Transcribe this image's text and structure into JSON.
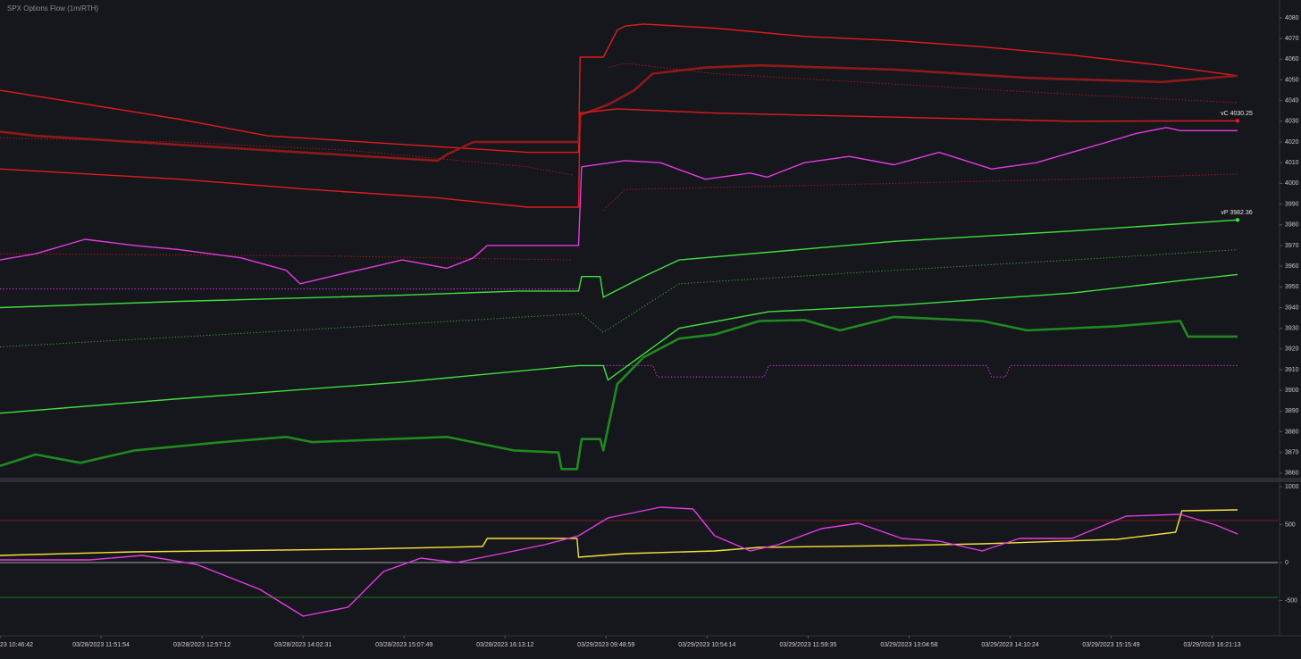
{
  "chart_data": [
    {
      "type": "line",
      "title": "SPX Options Flow (1m/RTH)",
      "xlim": [
        0,
        826
      ],
      "ylim": [
        3857.8,
        4088.6
      ],
      "yticks": [
        3860,
        3870,
        3880,
        3890,
        3900,
        3910,
        3920,
        3930,
        3940,
        3950,
        3960,
        3970,
        3980,
        3990,
        4000,
        4010,
        4020,
        4030,
        4040,
        4050,
        4060,
        4070,
        4080
      ],
      "series": [
        {
          "color": "#e01c1c",
          "linestyle": "solid",
          "x": [
            0,
            58,
            116,
            173,
            341,
            374,
            375,
            390,
            399,
            404,
            416,
            462,
            520,
            578,
            635,
            693,
            751,
            800
          ],
          "values": [
            4045,
            4038,
            4031,
            4023,
            4015,
            4015,
            4061,
            4061,
            4074,
            4076,
            4077,
            4075,
            4071,
            4069,
            4066,
            4062,
            4057,
            4052
          ]
        },
        {
          "color": "#8e1a1a",
          "linestyle": "thick",
          "x": [
            0,
            23,
            87,
            173,
            283,
            289,
            306,
            374,
            375,
            393,
            410,
            422,
            456,
            491,
            578,
            664,
            751,
            800
          ],
          "values": [
            4025,
            4023,
            4020,
            4016,
            4011,
            4014,
            4020,
            4020,
            4033,
            4038,
            4045,
            4053,
            4056,
            4057,
            4055,
            4051,
            4049,
            4052
          ]
        },
        {
          "color": "#e01c1c",
          "linestyle": "solid",
          "x": [
            0,
            116,
            202,
            283,
            341,
            374,
            375,
            399,
            462,
            578,
            693,
            800
          ],
          "values": [
            4007,
            4002,
            3997,
            3993,
            3988.5,
            3988.5,
            4034,
            4036,
            4034,
            4032,
            4030,
            4030.25
          ]
        },
        {
          "color": "#a51818",
          "linestyle": "dotted",
          "x": [
            0,
            116,
            225,
            341,
            370,
            374,
            393,
            404,
            462,
            578,
            693,
            800
          ],
          "values": [
            4022,
            4020,
            4016,
            4008,
            4004,
            null,
            4056,
            4058,
            4053,
            4048,
            4043,
            4039
          ]
        },
        {
          "color": "#a51818",
          "linestyle": "dotted",
          "x": [
            0,
            202,
            370,
            374,
            390,
            404,
            462,
            578,
            693,
            800
          ],
          "values": [
            3966,
            3965,
            3963,
            null,
            3987,
            3997,
            3998,
            4000,
            4002,
            4004.5
          ]
        },
        {
          "color": "#e33be0",
          "linestyle": "solid",
          "x": [
            0,
            23,
            55,
            87,
            116,
            156,
            185,
            194,
            225,
            243,
            260,
            289,
            306,
            315,
            374,
            376,
            404,
            427,
            456,
            485,
            496,
            520,
            549,
            578,
            607,
            641,
            670,
            693,
            716,
            734,
            754,
            763,
            800
          ],
          "values": [
            3963,
            3966,
            3973,
            3970,
            3968,
            3964,
            3958,
            3951.5,
            3957,
            3960,
            3963,
            3959,
            3964,
            3970,
            3970,
            4008,
            4011,
            4010,
            4002,
            4005,
            4003,
            4010,
            4013,
            4009,
            4015,
            4007,
            4010,
            4015,
            4020,
            4024,
            4027,
            4025.5,
            4025.5
          ]
        },
        {
          "color": "#d02ed0",
          "linestyle": "dotted",
          "x": [
            0,
            374,
            375,
            376,
            388,
            422,
            425,
            494,
            497,
            638,
            641,
            650,
            653,
            800
          ],
          "values": [
            3949,
            3949,
            null,
            3912,
            3912,
            3912,
            3906.5,
            3906.5,
            3912,
            3912,
            3906.5,
            3906.5,
            3912,
            3912
          ]
        },
        {
          "color": "#3fe03f",
          "linestyle": "solid",
          "x": [
            0,
            116,
            260,
            335,
            374,
            376,
            388,
            390,
            416,
            439,
            578,
            693,
            800
          ],
          "values": [
            3940,
            3943,
            3946,
            3948,
            3948,
            3955,
            3955,
            3945,
            3955,
            3963,
            3972,
            3977,
            3982.36
          ]
        },
        {
          "color": "#2a9a2a",
          "linestyle": "dotted",
          "x": [
            0,
            144,
            260,
            374,
            376,
            390,
            439,
            578,
            693,
            800
          ],
          "values": [
            3921,
            3927,
            3932,
            3937,
            3937,
            3928,
            3951.5,
            3958,
            3963,
            3968
          ]
        },
        {
          "color": "#3fe03f",
          "linestyle": "solid",
          "x": [
            0,
            116,
            260,
            374,
            376,
            390,
            393,
            439,
            497,
            578,
            693,
            763,
            800
          ],
          "values": [
            3889,
            3896,
            3904,
            3912,
            3912,
            3912,
            3905,
            3930,
            3938,
            3941,
            3947,
            3953,
            3956
          ]
        },
        {
          "color": "#1f8a1f",
          "linestyle": "thick",
          "x": [
            0,
            23,
            52,
            87,
            144,
            185,
            202,
            289,
            332,
            361,
            363,
            373,
            376,
            388,
            390,
            399,
            416,
            439,
            462,
            491,
            520,
            543,
            578,
            635,
            664,
            722,
            763,
            768,
            800
          ],
          "values": [
            3863.5,
            3869,
            3865,
            3871,
            3875,
            3877.5,
            3875,
            3877.5,
            3871,
            3870,
            3862,
            3862,
            3876.5,
            3876.5,
            3871,
            3903,
            3916,
            3925,
            3927,
            3933.5,
            3934,
            3929,
            3935.5,
            3933.5,
            3929,
            3931,
            3933.5,
            3926,
            3926
          ]
        }
      ],
      "annotations": [
        {
          "text": "vC 4030.25",
          "x": 800,
          "y": 4030.25,
          "color": "#e01c1c"
        },
        {
          "text": "vP 3982.36",
          "x": 800,
          "y": 3982.36,
          "color": "#3fe03f"
        }
      ]
    },
    {
      "type": "line",
      "xlim": [
        0,
        826
      ],
      "ylim": [
        -965,
        1059
      ],
      "yticks": [
        -500,
        0,
        500,
        1000
      ],
      "xticks": [
        {
          "value": 0,
          "label": "23 10:46:42"
        },
        {
          "value": 65.3,
          "label": "03/28/2023 11:51:54"
        },
        {
          "value": 130.6,
          "label": "03/28/2023 12:57:12"
        },
        {
          "value": 195.9,
          "label": "03/28/2023 14:02:31"
        },
        {
          "value": 261.2,
          "label": "03/28/2023 15:07:49"
        },
        {
          "value": 326.5,
          "label": "03/28/2023 16:13:12"
        },
        {
          "value": 391.8,
          "label": "03/29/2023 09:48:59"
        },
        {
          "value": 457.1,
          "label": "03/29/2023 10:54:14"
        },
        {
          "value": 522.4,
          "label": "03/29/2023 11:59:35"
        },
        {
          "value": 587.7,
          "label": "03/29/2023 13:04:58"
        },
        {
          "value": 653,
          "label": "03/29/2023 14:10:24"
        },
        {
          "value": 718.3,
          "label": "03/29/2023 15:15:49"
        },
        {
          "value": 783.6,
          "label": "03/29/2023 16:21:13"
        }
      ],
      "hlines": [
        {
          "value": 553,
          "color": "#a01c1c"
        },
        {
          "value": 0,
          "color": "#cfcfcf"
        },
        {
          "value": -459,
          "color": "#1f9a1f"
        }
      ],
      "series": [
        {
          "color": "#f2e23a",
          "linestyle": "solid",
          "x": [
            0,
            87,
            231,
            312,
            315,
            373,
            374,
            404,
            462,
            491,
            578,
            635,
            722,
            760,
            764,
            800
          ],
          "values": [
            94,
            141,
            176,
            212,
            318,
            318,
            71,
            118,
            153,
            200,
            224,
            247,
            306,
            400,
            682,
            694
          ]
        },
        {
          "color": "#e33be0",
          "linestyle": "solid",
          "x": [
            0,
            58,
            92,
            127,
            168,
            196,
            225,
            248,
            272,
            295,
            324,
            352,
            374,
            393,
            427,
            448,
            462,
            485,
            503,
            531,
            555,
            583,
            607,
            635,
            659,
            693,
            728,
            763,
            786,
            800
          ],
          "values": [
            35,
            35,
            94,
            -24,
            -353,
            -706,
            -588,
            -118,
            59,
            0,
            118,
            235,
            353,
            588,
            729,
            706,
            353,
            153,
            235,
            447,
            518,
            318,
            282,
            153,
            318,
            318,
            612,
            635,
            494,
            376
          ]
        }
      ]
    }
  ]
}
